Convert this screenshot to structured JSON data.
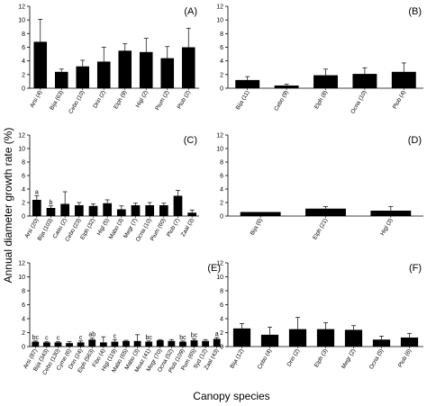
{
  "figure": {
    "ylabel": "Annual diameter growth rate (%)",
    "xlabel": "Canopy species"
  },
  "chart_data": [
    {
      "type": "bar",
      "panel": "(A)",
      "ylim": [
        0,
        12
      ],
      "yticks": [
        0,
        2,
        4,
        6,
        8,
        10,
        12
      ],
      "categories": [
        "Arsi (4)",
        "Bija (63)",
        "Cebo (10)",
        "Drin (2)",
        "Elph (9)",
        "Higl (2)",
        "Pium (2)",
        "Plob (2)"
      ],
      "values": [
        6.8,
        2.4,
        3.2,
        3.9,
        5.5,
        5.3,
        4.4,
        6.0
      ],
      "errors": [
        3.3,
        0.4,
        0.9,
        2.1,
        1.0,
        2.0,
        1.7,
        2.8
      ],
      "annotations": []
    },
    {
      "type": "bar",
      "panel": "(B)",
      "ylim": [
        0,
        12
      ],
      "yticks": [
        0,
        2,
        4,
        6,
        8,
        10,
        12
      ],
      "categories": [
        "Bija (11)",
        "Cebo (9)",
        "Elph (8)",
        "Ocna (10)",
        "Plob (4)"
      ],
      "values": [
        1.2,
        0.4,
        1.9,
        2.1,
        2.4
      ],
      "errors": [
        0.5,
        0.2,
        0.9,
        0.9,
        1.3
      ],
      "annotations": []
    },
    {
      "type": "bar",
      "panel": "(C)",
      "ylim": [
        0,
        12
      ],
      "yticks": [
        0,
        2,
        4,
        6,
        8,
        10,
        12
      ],
      "categories": [
        "Arsi (20)",
        "Bija (103)",
        "Casu (2)",
        "Cebo (23)",
        "Elph (32)",
        "Higl (5)",
        "Mabo (3)",
        "Megr (7)",
        "Ocna (10)",
        "Pium (60)",
        "Plob (7)",
        "Zaal (3)"
      ],
      "values": [
        2.4,
        1.2,
        1.8,
        1.6,
        1.5,
        1.9,
        1.0,
        1.6,
        1.6,
        1.6,
        3.0,
        0.5
      ],
      "errors": [
        0.6,
        0.3,
        1.8,
        0.4,
        0.3,
        0.5,
        0.5,
        0.3,
        0.4,
        0.3,
        0.8,
        0.4
      ],
      "annotations": [
        "a",
        "b",
        "",
        "",
        "",
        "",
        "",
        "",
        "",
        "",
        "",
        ""
      ]
    },
    {
      "type": "bar",
      "panel": "(D)",
      "ylim": [
        0,
        12
      ],
      "yticks": [
        0,
        2,
        4,
        6,
        8,
        10,
        12
      ],
      "categories": [
        "Bija (6)",
        "Elph (21)",
        "Higl (3)"
      ],
      "values": [
        0.6,
        1.1,
        0.8
      ],
      "errors": [
        0.0,
        0.3,
        0.6
      ],
      "annotations": []
    },
    {
      "type": "bar",
      "panel": "(E)",
      "ylim": [
        0,
        12
      ],
      "yticks": [
        0,
        2,
        4,
        6,
        8,
        10,
        12
      ],
      "categories": [
        "Arsi (87)",
        "Bija (343)",
        "Cebo (130)",
        "Cyme (6)",
        "Drin (24)",
        "Elph (563)",
        "Fibo (4)",
        "Higl (119)",
        "Mabo (65)",
        "Mabo (3)",
        "Meaz (41)",
        "Megr (70)",
        "Ocna (52)",
        "Plob (109)",
        "Pum (65)",
        "Syd (12)",
        "Zaal (43)"
      ],
      "values": [
        0.7,
        0.6,
        0.6,
        0.5,
        0.6,
        1.0,
        0.6,
        0.7,
        0.8,
        0.8,
        0.7,
        0.9,
        0.8,
        0.7,
        0.9,
        0.8,
        1.1
      ],
      "errors": [
        0.1,
        0.1,
        0.1,
        0.2,
        0.2,
        0.2,
        0.8,
        0.3,
        0.1,
        0.9,
        0.1,
        0.1,
        0.2,
        0.1,
        0.2,
        0.2,
        0.2
      ],
      "annotations": [
        "bc",
        "c",
        "c",
        "",
        "c",
        "ab",
        "",
        "c",
        "",
        "",
        "bc",
        "",
        "",
        "bc",
        "bc",
        "",
        "a"
      ]
    },
    {
      "type": "bar",
      "panel": "(F)",
      "ylim": [
        0,
        12
      ],
      "yticks": [
        0,
        2,
        4,
        6,
        8,
        10,
        12
      ],
      "categories": [
        "Bija (12)",
        "Cebo (4)",
        "Drin (2)",
        "Elph (3)",
        "Megr (2)",
        "Ocna (5)",
        "Plob (6)"
      ],
      "values": [
        2.6,
        1.7,
        2.5,
        2.5,
        2.4,
        1.0,
        1.3
      ],
      "errors": [
        0.7,
        1.1,
        1.7,
        0.9,
        0.6,
        0.5,
        0.6
      ],
      "annotations": []
    }
  ]
}
